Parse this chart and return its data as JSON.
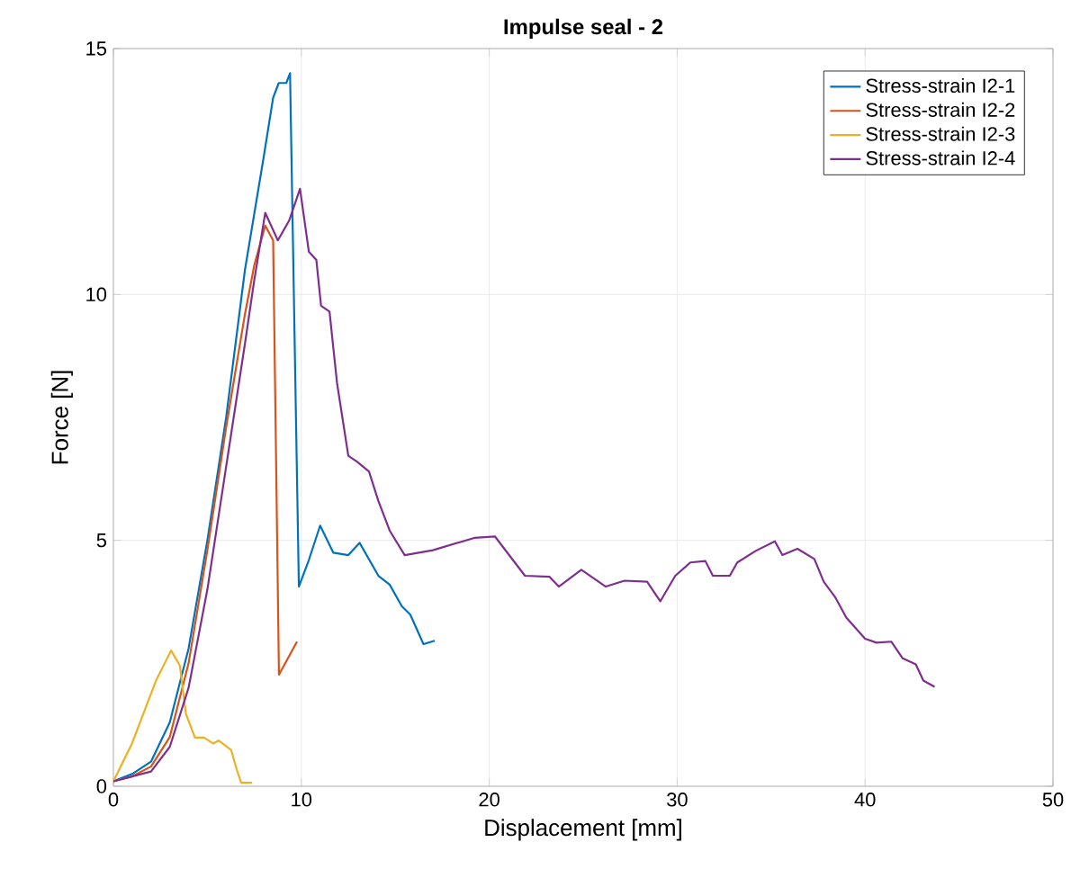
{
  "chart_data": {
    "type": "line",
    "title": "Impulse seal - 2",
    "xlabel": "Displacement [mm]",
    "ylabel": "Force [N]",
    "xlim": [
      0,
      50
    ],
    "ylim": [
      0,
      15
    ],
    "xticks": [
      0,
      10,
      20,
      30,
      40,
      50
    ],
    "yticks": [
      0,
      5,
      10,
      15
    ],
    "grid": true,
    "legend": "top right",
    "marker": "none",
    "line_style": "solid",
    "series": [
      {
        "name": "Stress-strain I2-1",
        "color": "#0072bd",
        "x": [
          0,
          1,
          2,
          3,
          4,
          5,
          6,
          7,
          8,
          8.5,
          8.8,
          9.2,
          9.4,
          9.87,
          10.4,
          11.0,
          11.7,
          12.5,
          13.1,
          14.1,
          14.7,
          15.35,
          15.8,
          16.5,
          17.1
        ],
        "values": [
          0.1,
          0.25,
          0.5,
          1.3,
          2.8,
          5.0,
          7.5,
          10.5,
          12.8,
          14.0,
          14.3,
          14.3,
          14.5,
          4.06,
          4.6,
          5.3,
          4.75,
          4.7,
          4.95,
          4.28,
          4.1,
          3.66,
          3.49,
          2.89,
          2.96
        ]
      },
      {
        "name": "Stress-strain I2-2",
        "color": "#d95319",
        "x": [
          0,
          1,
          2,
          3,
          4,
          5,
          6,
          7,
          7.5,
          8.08,
          8.5,
          8.81,
          9.77
        ],
        "values": [
          0.1,
          0.2,
          0.4,
          1.0,
          2.5,
          4.8,
          7.3,
          9.6,
          10.6,
          11.4,
          11.1,
          2.27,
          2.94
        ]
      },
      {
        "name": "Stress-strain I2-3",
        "color": "#edb120",
        "x": [
          0,
          0.99,
          2.27,
          3.07,
          3.54,
          3.86,
          4.34,
          4.82,
          5.3,
          5.6,
          6.26,
          6.58,
          6.8,
          7.38
        ],
        "values": [
          0.1,
          0.87,
          2.15,
          2.76,
          2.45,
          1.47,
          0.99,
          0.99,
          0.87,
          0.93,
          0.74,
          0.32,
          0.07,
          0.07
        ]
      },
      {
        "name": "Stress-strain I2-4",
        "color": "#7e2f8e",
        "x": [
          0,
          2,
          3,
          4,
          5,
          6,
          7,
          7.5,
          8.08,
          8.75,
          9.35,
          9.93,
          10.4,
          10.8,
          11.05,
          11.5,
          11.9,
          12.5,
          12.96,
          13.6,
          14.1,
          14.7,
          15.5,
          17.0,
          19.2,
          20.3,
          21.9,
          23.2,
          23.7,
          24.9,
          26.2,
          27.2,
          28.4,
          29.1,
          29.9,
          30.7,
          31.5,
          31.9,
          32.8,
          33.2,
          34.2,
          35.2,
          35.6,
          36.4,
          37.3,
          37.8,
          38.4,
          39.0,
          40.0,
          40.6,
          41.4,
          42.0,
          42.7,
          43.1,
          43.7
        ],
        "values": [
          0.1,
          0.3,
          0.8,
          2.0,
          4.0,
          6.5,
          9.0,
          10.3,
          11.66,
          11.1,
          11.5,
          12.15,
          10.87,
          10.7,
          9.77,
          9.65,
          8.2,
          6.72,
          6.6,
          6.4,
          5.8,
          5.2,
          4.7,
          4.8,
          5.05,
          5.08,
          4.28,
          4.26,
          4.06,
          4.4,
          4.06,
          4.18,
          4.16,
          3.76,
          4.28,
          4.55,
          4.58,
          4.28,
          4.28,
          4.55,
          4.79,
          4.98,
          4.7,
          4.83,
          4.62,
          4.16,
          3.85,
          3.43,
          3.0,
          2.92,
          2.94,
          2.6,
          2.48,
          2.15,
          2.02
        ]
      }
    ]
  }
}
